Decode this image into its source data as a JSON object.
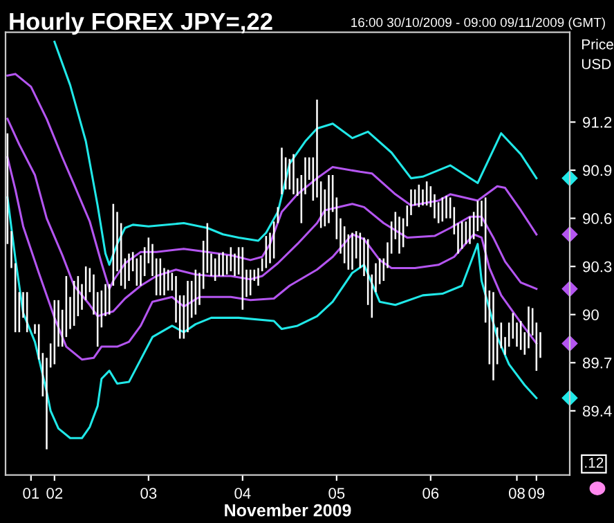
{
  "chart_data": {
    "type": "bar",
    "title": "Hourly FOREX JPY=,22",
    "subtitle": "16:00 30/10/2009 - 09:00 09/11/2009 (GMT)",
    "xlabel": "November 2009",
    "ylabel": "Price USD",
    "annotations": [
      ".12"
    ],
    "ylim": [
      89.0,
      91.76
    ],
    "yticks": [
      91.2,
      90.9,
      90.6,
      90.3,
      90,
      89.7,
      89.4
    ],
    "grid": false,
    "legend": false,
    "categories": [
      null,
      null,
      null,
      null,
      null,
      null,
      "01",
      null,
      null,
      null,
      null,
      null,
      "02",
      null,
      null,
      null,
      null,
      null,
      null,
      null,
      null,
      null,
      null,
      null,
      null,
      null,
      null,
      null,
      null,
      null,
      null,
      null,
      null,
      null,
      null,
      null,
      "03",
      null,
      null,
      null,
      null,
      null,
      null,
      null,
      null,
      null,
      null,
      null,
      null,
      null,
      null,
      null,
      null,
      null,
      null,
      null,
      null,
      null,
      null,
      null,
      "04",
      null,
      null,
      null,
      null,
      null,
      null,
      null,
      null,
      null,
      null,
      null,
      null,
      null,
      null,
      null,
      null,
      null,
      null,
      null,
      null,
      null,
      null,
      null,
      "05",
      null,
      null,
      null,
      null,
      null,
      null,
      null,
      null,
      null,
      null,
      null,
      null,
      null,
      null,
      null,
      null,
      null,
      null,
      null,
      null,
      null,
      null,
      null,
      "06",
      null,
      null,
      null,
      null,
      null,
      null,
      null,
      null,
      null,
      null,
      null,
      null,
      null,
      null,
      null,
      null,
      null,
      null,
      null,
      null,
      null,
      "08",
      null,
      null,
      null,
      null,
      "09",
      null
    ],
    "series": [
      {
        "color": "#ffffff",
        "base": [
          90.44,
          90.29,
          89.89,
          89.89,
          89.98,
          89.89,
          null,
          89.88,
          89.72,
          89.49,
          89.16,
          89.67,
          89.69,
          89.8,
          89.8,
          89.86,
          89.91,
          89.93,
          89.99,
          90.03,
          90.09,
          90.14,
          90.0,
          89.8,
          89.92,
          89.99,
          90.0,
          90.18,
          90.27,
          90.18,
          90.16,
          90.21,
          90.27,
          90.18,
          90.18,
          90.24,
          90.32,
          90.24,
          90.12,
          90.12,
          90.12,
          90.15,
          90.15,
          89.95,
          89.85,
          89.85,
          89.89,
          89.98,
          90.0,
          90.06,
          90.16,
          90.26,
          90.24,
          90.21,
          90.24,
          90.24,
          90.25,
          90.27,
          90.24,
          90.25,
          90.03,
          90.11,
          90.12,
          90.21,
          90.18,
          90.27,
          90.29,
          90.32,
          90.35,
          90.57,
          90.75,
          90.78,
          90.78,
          90.75,
          90.74,
          90.57,
          90.75,
          90.84,
          90.71,
          90.73,
          90.54,
          90.55,
          90.57,
          90.64,
          90.47,
          90.38,
          90.32,
          90.28,
          90.28,
          90.35,
          90.29,
          90.24,
          90.06,
          89.98,
          90.14,
          90.19,
          90.21,
          90.29,
          90.38,
          90.47,
          90.38,
          90.42,
          90.55,
          90.62,
          90.68,
          90.67,
          90.68,
          90.68,
          90.67,
          90.6,
          90.57,
          90.58,
          90.6,
          90.6,
          90.5,
          90.38,
          90.41,
          90.44,
          90.44,
          90.47,
          90.52,
          90.55,
          89.95,
          89.69,
          89.59,
          89.69,
          89.79,
          89.75,
          89.8,
          89.85,
          89.8,
          89.78,
          89.75,
          89.79,
          89.87,
          89.65,
          89.73
        ],
        "values": [
          0.69,
          0.23,
          0.43,
          0.25,
          0.16,
          0.25,
          null,
          0.06,
          0.22,
          0.27,
          0.57,
          0.15,
          0.4,
          0.29,
          0.23,
          0.38,
          0.2,
          0.28,
          0.25,
          0.16,
          0.21,
          0.15,
          0.25,
          0.34,
          0.23,
          0.2,
          0.19,
          0.51,
          0.37,
          0.39,
          0.19,
          0.17,
          0.12,
          0.17,
          0.19,
          0.18,
          0.16,
          0.2,
          0.23,
          0.23,
          0.17,
          0.13,
          0.11,
          0.29,
          0.27,
          0.27,
          0.32,
          0.23,
          0.28,
          0.2,
          0.3,
          0.31,
          0.14,
          0.14,
          0.14,
          0.15,
          0.12,
          0.15,
          0.14,
          0.17,
          0.39,
          0.17,
          0.16,
          0.07,
          0.11,
          0.08,
          0.2,
          0.19,
          0.23,
          0.1,
          0.29,
          0.2,
          0.19,
          0.25,
          0.11,
          0.3,
          0.23,
          0.14,
          0.27,
          0.61,
          0.29,
          0.23,
          0.3,
          0.23,
          0.26,
          0.22,
          0.23,
          0.22,
          0.23,
          0.17,
          0.22,
          0.24,
          0.41,
          0.27,
          0.18,
          0.16,
          0.14,
          0.16,
          0.2,
          0.17,
          0.23,
          0.18,
          0.13,
          0.16,
          0.1,
          0.14,
          0.1,
          0.15,
          0.13,
          0.15,
          0.13,
          0.15,
          0.14,
          0.13,
          0.17,
          0.19,
          0.17,
          0.14,
          0.17,
          0.17,
          0.19,
          0.16,
          0.78,
          0.46,
          0.55,
          0.23,
          0.16,
          0.11,
          0.15,
          0.16,
          0.15,
          0.18,
          0.14,
          0.26,
          0.17,
          0.3,
          0.16
        ]
      },
      {
        "type": "line",
        "color": "#20e8e8",
        "values": [
          null,
          null,
          null,
          null,
          null,
          null,
          null,
          null,
          null,
          null,
          null,
          null,
          91.7,
          null,
          null,
          null,
          91.43,
          null,
          null,
          null,
          91.08,
          null,
          null,
          90.68,
          null,
          90.38,
          90.31,
          null,
          90.44,
          null,
          90.54,
          null,
          90.56,
          null,
          null,
          null,
          90.55,
          null,
          null,
          null,
          null,
          null,
          null,
          null,
          null,
          90.57,
          null,
          null,
          null,
          null,
          null,
          90.54,
          null,
          null,
          null,
          90.5,
          null,
          null,
          null,
          90.48,
          null,
          null,
          null,
          null,
          90.46,
          null,
          90.51,
          null,
          null,
          90.64,
          null,
          null,
          90.94,
          null,
          null,
          null,
          91.08,
          null,
          null,
          91.16,
          null,
          null,
          null,
          91.19,
          null,
          null,
          null,
          null,
          91.1,
          null,
          null,
          null,
          91.14,
          null,
          null,
          null,
          null,
          null,
          91.01,
          null,
          null,
          null,
          null,
          90.85,
          null,
          null,
          90.86,
          null,
          null,
          null,
          null,
          null,
          null,
          90.93,
          null,
          null,
          null,
          null,
          null,
          null,
          90.82,
          null,
          null,
          null,
          null,
          null,
          91.13,
          null,
          null,
          null,
          null,
          91.0,
          null,
          null,
          null,
          90.85,
          null
        ]
      },
      {
        "type": "line",
        "color": "#b455f0",
        "values": [
          91.49,
          null,
          91.5,
          null,
          null,
          null,
          91.42,
          null,
          null,
          null,
          91.22,
          null,
          null,
          null,
          90.98,
          null,
          null,
          90.81,
          null,
          null,
          null,
          90.58,
          null,
          null,
          90.32,
          null,
          90.16,
          90.21,
          null,
          null,
          90.32,
          null,
          null,
          null,
          90.39,
          null,
          null,
          null,
          90.39,
          null,
          null,
          null,
          null,
          null,
          null,
          90.41,
          null,
          null,
          null,
          null,
          null,
          90.39,
          null,
          null,
          null,
          null,
          null,
          90.37,
          null,
          null,
          null,
          null,
          90.34,
          null,
          null,
          90.36,
          null,
          90.44,
          null,
          null,
          90.64,
          null,
          null,
          null,
          90.75,
          null,
          null,
          null,
          null,
          90.85,
          null,
          null,
          null,
          90.92,
          null,
          null,
          null,
          null,
          null,
          null,
          90.89,
          null,
          null,
          90.88,
          null,
          null,
          null,
          null,
          null,
          90.75,
          null,
          null,
          null,
          90.68,
          null,
          null,
          null,
          null,
          null,
          null,
          90.71,
          null,
          null,
          90.75,
          null,
          null,
          null,
          null,
          null,
          null,
          90.71,
          null,
          null,
          null,
          null,
          90.8,
          null,
          90.79,
          null,
          null,
          null,
          90.65,
          null,
          null,
          null,
          90.5,
          null
        ]
      },
      {
        "type": "line",
        "color": "#b455f0",
        "values": [
          91.22,
          null,
          null,
          91.06,
          null,
          null,
          null,
          90.87,
          null,
          null,
          90.6,
          null,
          null,
          null,
          90.37,
          null,
          null,
          90.18,
          null,
          null,
          null,
          90.06,
          null,
          89.99,
          null,
          null,
          null,
          90.02,
          null,
          null,
          90.1,
          null,
          null,
          null,
          90.18,
          null,
          null,
          null,
          90.24,
          null,
          null,
          null,
          null,
          90.28,
          null,
          null,
          null,
          null,
          90.25,
          null,
          null,
          null,
          90.24,
          null,
          null,
          null,
          null,
          90.24,
          null,
          null,
          null,
          null,
          90.22,
          null,
          null,
          90.24,
          null,
          null,
          null,
          90.32,
          null,
          null,
          null,
          null,
          90.44,
          null,
          null,
          null,
          null,
          90.57,
          null,
          90.65,
          null,
          null,
          null,
          null,
          null,
          null,
          90.69,
          null,
          null,
          90.67,
          null,
          null,
          null,
          null,
          90.57,
          null,
          null,
          null,
          null,
          null,
          90.48,
          null,
          null,
          null,
          null,
          null,
          null,
          90.49,
          null,
          null,
          null,
          90.54,
          null,
          null,
          null,
          null,
          90.61,
          null,
          null,
          90.61,
          null,
          null,
          90.48,
          null,
          null,
          90.33,
          null,
          null,
          null,
          90.2,
          null,
          null,
          null,
          90.16,
          null
        ]
      },
      {
        "type": "line",
        "color": "#b455f0",
        "values": [
          90.98,
          null,
          90.78,
          null,
          90.55,
          null,
          null,
          null,
          90.26,
          null,
          null,
          null,
          89.98,
          null,
          null,
          89.8,
          null,
          null,
          null,
          89.72,
          null,
          null,
          89.73,
          null,
          89.8,
          null,
          null,
          null,
          89.8,
          null,
          null,
          89.83,
          null,
          null,
          89.93,
          null,
          null,
          90.08,
          null,
          null,
          null,
          null,
          90.11,
          null,
          null,
          90.05,
          null,
          null,
          null,
          90.11,
          null,
          null,
          null,
          null,
          null,
          null,
          null,
          90.11,
          null,
          null,
          null,
          null,
          90.09,
          null,
          null,
          null,
          null,
          null,
          90.1,
          null,
          null,
          null,
          90.18,
          null,
          null,
          null,
          null,
          null,
          null,
          90.28,
          null,
          null,
          null,
          90.36,
          null,
          null,
          null,
          null,
          90.5,
          null,
          null,
          90.47,
          null,
          null,
          null,
          90.34,
          null,
          null,
          90.29,
          null,
          null,
          null,
          null,
          null,
          90.29,
          null,
          null,
          null,
          null,
          null,
          90.31,
          null,
          null,
          null,
          90.36,
          null,
          null,
          null,
          null,
          90.5,
          null,
          90.48,
          null,
          90.29,
          null,
          null,
          90.12,
          null,
          null,
          null,
          null,
          89.95,
          null,
          null,
          null,
          89.82,
          null
        ]
      },
      {
        "type": "line",
        "color": "#20e8e8",
        "values": [
          90.73,
          null,
          90.35,
          null,
          90.01,
          null,
          null,
          89.83,
          null,
          null,
          89.52,
          89.4,
          null,
          89.29,
          null,
          null,
          89.23,
          null,
          null,
          89.23,
          null,
          89.3,
          null,
          89.43,
          89.6,
          null,
          89.65,
          null,
          89.57,
          null,
          null,
          89.58,
          null,
          null,
          89.72,
          null,
          null,
          89.86,
          null,
          null,
          null,
          null,
          89.93,
          null,
          null,
          89.89,
          null,
          null,
          89.94,
          null,
          null,
          null,
          89.98,
          null,
          null,
          null,
          null,
          null,
          null,
          89.98,
          null,
          null,
          null,
          null,
          null,
          null,
          null,
          null,
          89.96,
          null,
          89.91,
          null,
          null,
          null,
          89.93,
          null,
          null,
          null,
          null,
          89.99,
          null,
          null,
          null,
          90.08,
          null,
          null,
          null,
          null,
          90.26,
          null,
          null,
          90.31,
          null,
          null,
          null,
          90.08,
          null,
          null,
          null,
          90.06,
          null,
          null,
          null,
          null,
          null,
          null,
          90.12,
          null,
          null,
          null,
          null,
          90.13,
          null,
          null,
          null,
          null,
          90.18,
          null,
          null,
          null,
          90.44,
          90.21,
          null,
          null,
          null,
          89.86,
          null,
          null,
          89.69,
          null,
          null,
          null,
          89.56,
          null,
          null,
          89.48,
          null
        ]
      }
    ]
  }
}
